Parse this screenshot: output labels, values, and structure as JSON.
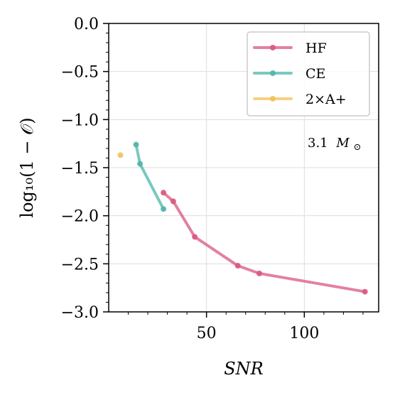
{
  "chart_data": {
    "type": "line",
    "xlabel": "SNR",
    "ylabel": "log₁₀(1 − 𝒪)",
    "xlim": [
      0,
      138
    ],
    "ylim": [
      -3.0,
      0.0
    ],
    "xticks": [
      50,
      100
    ],
    "xtick_labels": [
      "50",
      "100"
    ],
    "yticks": [
      0.0,
      -0.5,
      -1.0,
      -1.5,
      -2.0,
      -2.5,
      -3.0
    ],
    "ytick_labels": [
      "0.0",
      "−0.5",
      "−1.0",
      "−1.5",
      "−2.0",
      "−2.5",
      "−3.0"
    ],
    "grid": true,
    "legend_position": "top-right",
    "annotation": {
      "text": "3.1",
      "unit": "M",
      "subscript": "⊙"
    },
    "series": [
      {
        "name": "HF",
        "color": "#d9577f",
        "x": [
          28,
          33,
          44,
          66,
          77,
          131
        ],
        "y": [
          -1.76,
          -1.85,
          -2.22,
          -2.52,
          -2.6,
          -2.79
        ]
      },
      {
        "name": "CE",
        "color": "#4fb5aa",
        "x": [
          14,
          16,
          28
        ],
        "y": [
          -1.26,
          -1.46,
          -1.93
        ]
      },
      {
        "name": "2×A+",
        "color": "#f2c15a",
        "x": [
          6
        ],
        "y": [
          -1.37
        ]
      }
    ]
  }
}
